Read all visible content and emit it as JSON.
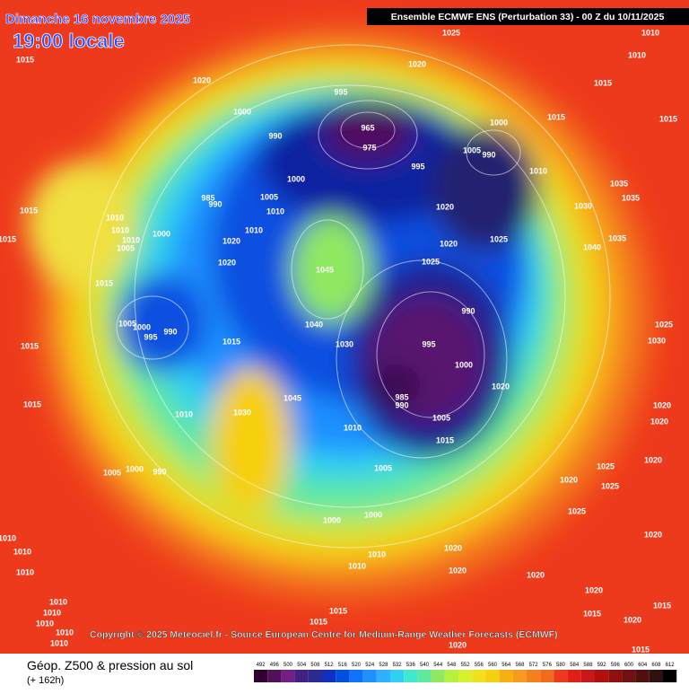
{
  "header": {
    "date": "Dimanche 16 novembre 2025",
    "time": "19:00 locale",
    "model": "Ensemble ECMWF ENS  (Perturbation 33)  - 00 Z du 10/11/2025"
  },
  "copyright": "Copyright © 2025 Meteociel.fr - Source European Centre for Medium-Range Weather Forecasts (ECMWF)",
  "footer": {
    "title": "Géop. Z500 & pression au sol",
    "subtitle": "(+ 162h)"
  },
  "scale": [
    492,
    496,
    500,
    504,
    508,
    512,
    516,
    520,
    524,
    528,
    532,
    536,
    540,
    544,
    548,
    552,
    556,
    560,
    564,
    568,
    572,
    576,
    580,
    584,
    588,
    592,
    596,
    600,
    604,
    608,
    612
  ],
  "isobar_labels": [
    1015,
    1020,
    1000,
    990,
    995,
    965,
    975,
    995,
    1000,
    1005,
    990,
    1010,
    1015,
    1020,
    1025,
    1010,
    1010,
    1015,
    1015,
    1035,
    1035,
    1030,
    1040,
    1035,
    1025,
    1020,
    1020,
    1025,
    1045,
    1000,
    1005,
    1010,
    985,
    990,
    1020,
    1020,
    1010,
    1015,
    1010,
    1010,
    1010,
    1005,
    1000,
    1015,
    1015,
    1005,
    1000,
    990,
    995,
    1015,
    1015,
    1015,
    1010,
    1030,
    1045,
    1040,
    1030,
    990,
    995,
    1000,
    985,
    990,
    1010,
    1005,
    1015,
    1020,
    1005,
    1005,
    990,
    1000,
    1000,
    1000,
    1010,
    1010,
    1020,
    1020,
    1025,
    1020,
    1025,
    1020,
    1025,
    1020,
    1020,
    1020,
    1020,
    1025,
    1030,
    1010,
    1010,
    1010,
    1010,
    1010,
    1010,
    1010,
    1010,
    1015,
    1015,
    1020,
    1020,
    1020,
    1015,
    1015,
    1015
  ]
}
